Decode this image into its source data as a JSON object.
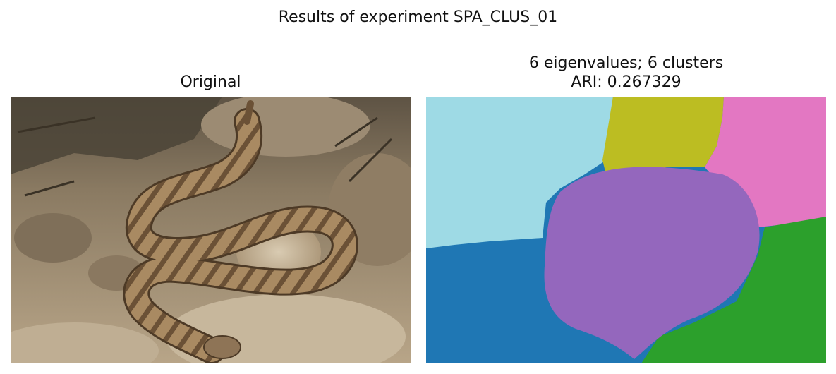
{
  "figure": {
    "suptitle": "Results of experiment SPA_CLUS_01"
  },
  "panels": [
    {
      "title": "Original",
      "image": "photograph of a banded rattlesnake coiled on rocky ground"
    },
    {
      "title_line1": "6 eigenvalues; 6 clusters",
      "title_line2": "ARI: 0.267329",
      "image": "spectral clustering segmentation map with 6 colored clusters"
    }
  ],
  "segmentation_colors": {
    "cluster_light_blue": "#9edae5",
    "cluster_olive": "#bcbd22",
    "cluster_pink": "#e377c2",
    "cluster_purple": "#9467bd",
    "cluster_blue": "#1f77b4",
    "cluster_green": "#2ca02c"
  }
}
